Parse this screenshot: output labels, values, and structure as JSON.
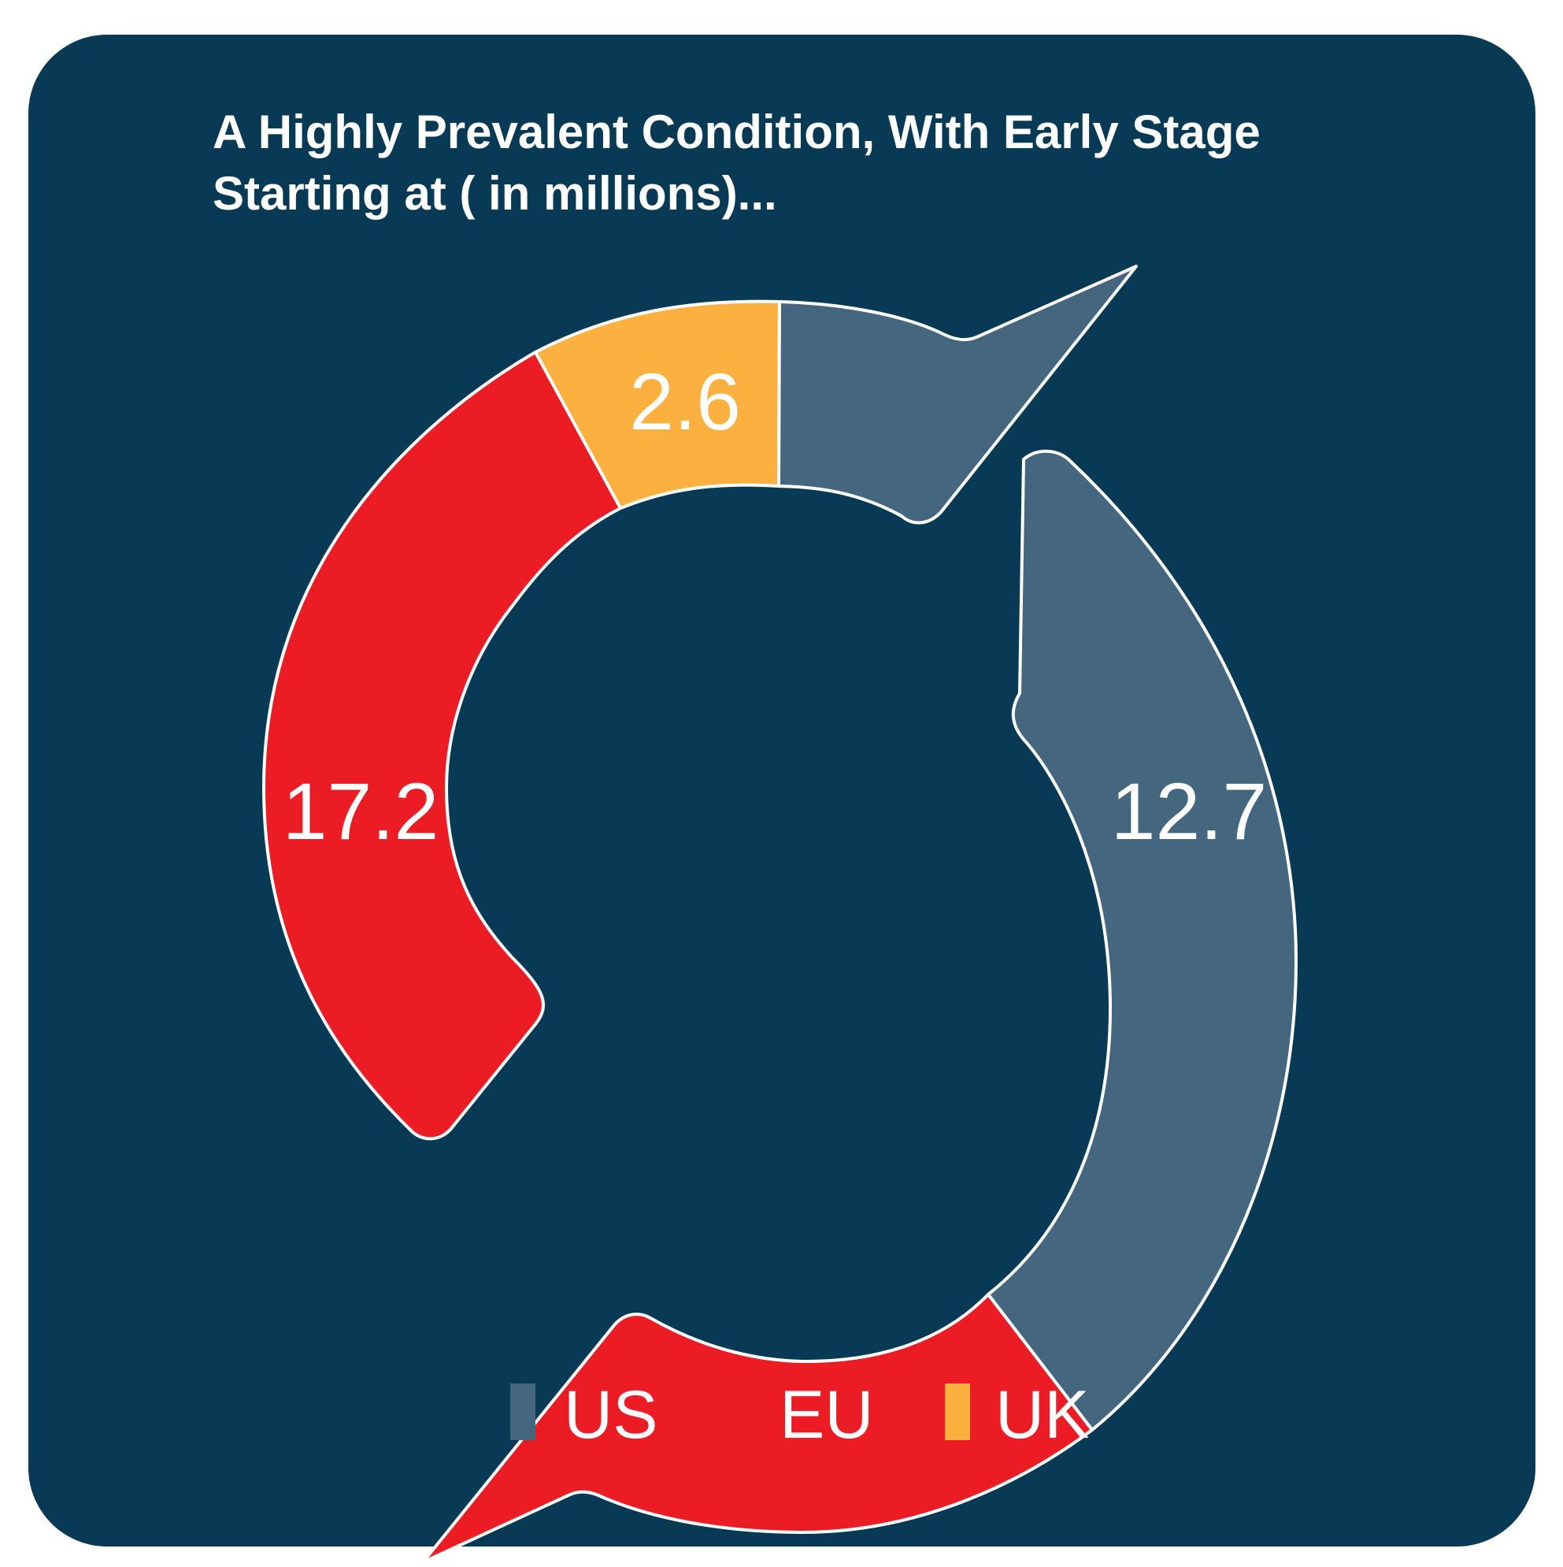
{
  "colors": {
    "background": "#083a55",
    "page": "#ffffff",
    "outline": "#ffffff"
  },
  "chart_data": {
    "type": "pie",
    "variant": "donut",
    "title": "A Highly Prevalent Condition, With Early Stage Starting at ( in millions)...",
    "title_lines": [
      "A Highly Prevalent Condition, With Early Stage",
      "Starting at ( in millions)..."
    ],
    "categories": [
      "US",
      "EU",
      "UK"
    ],
    "values": [
      12.7,
      17.2,
      2.6
    ],
    "value_labels": [
      "12.7",
      "17.2",
      "2.6"
    ],
    "colors": [
      "#44667f",
      "#ec1c24",
      "#fbb040"
    ],
    "legend": {
      "placement": "bottom",
      "items": [
        {
          "label": "US",
          "color": "#44667f"
        },
        {
          "label": "EU",
          "color": "#ec1c24"
        },
        {
          "label": "UK",
          "color": "#fbb040"
        }
      ]
    }
  }
}
